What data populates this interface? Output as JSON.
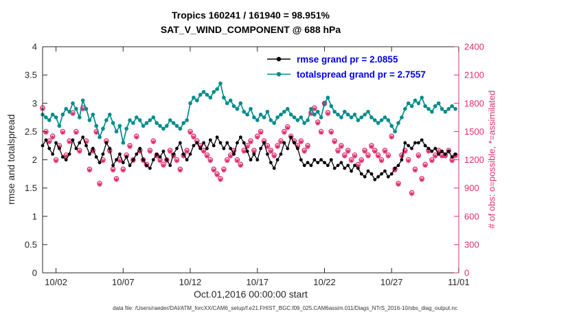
{
  "title_line1": "Tropics 160241 / 161940 = 98.951%",
  "title_line2": "SAT_V_WIND_COMPONENT @ 688 hPa",
  "footer": "data file: /Users/raeder/DAI/ATM_forcXX/CAM6_setup/f.e21.FHIST_BGC.f09_025.CAM6assim.011/Diags_NTrS_2016-10/obs_diag_output.nc",
  "colors": {
    "rmse": "#000000",
    "totalspread": "#008b8b",
    "obs": "#DE2D6C",
    "legend_text": "#0000EE",
    "axis": "#262626"
  },
  "chart_data": {
    "type": "line",
    "title": "Tropics 160241 / 161940 = 98.951% | SAT_V_WIND_COMPONENT @ 688 hPa",
    "xlabel": "Oct.01,2016 00:00:00 start",
    "ylabel_left": "rmse and totalspread",
    "ylabel_right": "# of obs: o=possible, *=assimilated",
    "ylim_left": [
      0,
      4
    ],
    "ylim_right": [
      0,
      2400
    ],
    "xlim_days": [
      1,
      32
    ],
    "xtick_days": [
      2,
      7,
      12,
      17,
      22,
      27,
      32
    ],
    "xtick_labels": [
      "10/02",
      "10/07",
      "10/12",
      "10/17",
      "10/22",
      "10/27",
      "11/01"
    ],
    "ytick_left": [
      0,
      0.5,
      1,
      1.5,
      2,
      2.5,
      3,
      3.5,
      4
    ],
    "ytick_right": [
      0,
      300,
      600,
      900,
      1200,
      1500,
      1800,
      2100,
      2400
    ],
    "x_start_day": 1,
    "x_step_days": 0.25,
    "grid": false,
    "legend_position": "upper-center-right",
    "series": [
      {
        "name": "# of obs possible",
        "axis": "right",
        "marker": "open-circle",
        "line": false,
        "color": "#DE2D6C",
        "values": [
          1750,
          1500,
          1400,
          1450,
          1200,
          1350,
          1500,
          1250,
          1400,
          1700,
          1500,
          1300,
          1750,
          1400,
          1100,
          1300,
          1500,
          950,
          1200,
          1400,
          1300,
          1100,
          1000,
          1200,
          1100,
          1250,
          1350,
          1200,
          1450,
          1300,
          1200,
          1150,
          1300,
          1400,
          1250,
          1200,
          1150,
          1200,
          1300,
          1250,
          1200,
          1100,
          1250,
          1300,
          1500,
          1450,
          1400,
          1350,
          1300,
          1250,
          1200,
          1100,
          1050,
          1000,
          1100,
          1200,
          1250,
          1300,
          1200,
          1150,
          1300,
          1350,
          1400,
          1300,
          1450,
          1500,
          1400,
          1350,
          1300,
          1250,
          1350,
          1400,
          1500,
          1550,
          1450,
          1400,
          1350,
          1400,
          1300,
          1350,
          1700,
          1750,
          1600,
          1500,
          1800,
          1700,
          1500,
          1400,
          1300,
          1350,
          1250,
          1300,
          1200,
          1250,
          1150,
          1200,
          1300,
          1250,
          1350,
          1300,
          1250,
          1200,
          1300,
          1250,
          1450,
          1100,
          950,
          1250,
          1300,
          1200,
          850,
          1100,
          1250,
          1000,
          1150,
          1300,
          1200,
          1250,
          1300,
          1250,
          1250,
          1300,
          1200,
          1250
        ]
      },
      {
        "name": "# of obs assimilated",
        "axis": "right",
        "marker": "asterisk",
        "line": false,
        "color": "#DE2D6C",
        "values": [
          1738,
          1488,
          1388,
          1438,
          1188,
          1338,
          1488,
          1238,
          1388,
          1688,
          1488,
          1288,
          1738,
          1388,
          1088,
          1288,
          1488,
          938,
          1188,
          1388,
          1288,
          1088,
          988,
          1188,
          1088,
          1238,
          1338,
          1188,
          1438,
          1288,
          1188,
          1138,
          1288,
          1388,
          1238,
          1188,
          1138,
          1188,
          1288,
          1238,
          1188,
          1088,
          1238,
          1288,
          1488,
          1438,
          1388,
          1338,
          1288,
          1238,
          1188,
          1088,
          1038,
          988,
          1088,
          1188,
          1238,
          1288,
          1188,
          1138,
          1288,
          1338,
          1388,
          1288,
          1438,
          1488,
          1388,
          1338,
          1288,
          1238,
          1338,
          1388,
          1488,
          1538,
          1438,
          1388,
          1338,
          1388,
          1288,
          1338,
          1688,
          1738,
          1588,
          1488,
          1788,
          1688,
          1488,
          1388,
          1288,
          1338,
          1238,
          1288,
          1188,
          1238,
          1138,
          1188,
          1288,
          1238,
          1338,
          1288,
          1238,
          1188,
          1288,
          1238,
          1438,
          1088,
          938,
          1238,
          1288,
          1188,
          838,
          1088,
          1238,
          988,
          1138,
          1288,
          1188,
          1238,
          1288,
          1238,
          1238,
          1288,
          1188,
          1238
        ]
      },
      {
        "name": "totalspread grand pr = 2.7557",
        "axis": "left",
        "marker": "filled-circle",
        "line": true,
        "color": "#008b8b",
        "values": [
          2.8,
          2.75,
          2.7,
          2.8,
          2.75,
          2.6,
          2.8,
          2.9,
          2.85,
          3.0,
          2.9,
          2.75,
          3.05,
          2.9,
          2.7,
          2.8,
          2.6,
          2.4,
          2.55,
          2.7,
          2.8,
          2.65,
          2.5,
          2.6,
          2.3,
          2.55,
          2.7,
          2.65,
          2.75,
          2.7,
          2.6,
          2.65,
          2.7,
          2.75,
          2.65,
          2.6,
          2.55,
          2.6,
          2.7,
          2.65,
          2.6,
          2.55,
          2.65,
          2.7,
          3.0,
          3.1,
          3.05,
          3.15,
          3.2,
          3.15,
          3.1,
          3.2,
          3.25,
          3.35,
          3.1,
          3.0,
          3.05,
          2.95,
          2.9,
          3.0,
          2.85,
          2.8,
          2.9,
          2.75,
          2.7,
          2.8,
          2.75,
          2.85,
          2.7,
          2.65,
          2.75,
          2.8,
          2.85,
          2.9,
          2.8,
          2.75,
          2.7,
          2.75,
          2.65,
          2.7,
          2.9,
          2.8,
          2.85,
          2.75,
          3.0,
          3.1,
          2.95,
          2.85,
          2.8,
          2.75,
          2.85,
          2.8,
          2.75,
          2.8,
          2.7,
          2.75,
          2.8,
          2.85,
          2.75,
          2.7,
          2.65,
          2.7,
          2.75,
          2.7,
          2.6,
          2.5,
          2.65,
          2.75,
          2.9,
          3.0,
          2.95,
          3.05,
          3.0,
          3.1,
          2.95,
          2.9,
          2.85,
          2.95,
          3.0,
          2.9,
          2.85,
          2.9,
          2.95,
          2.9
        ]
      },
      {
        "name": "rmse grand pr = 2.0855",
        "axis": "left",
        "marker": "filled-circle",
        "line": true,
        "color": "#000000",
        "values": [
          2.25,
          2.35,
          2.2,
          2.1,
          2.3,
          2.2,
          2.05,
          2.0,
          2.1,
          2.35,
          2.2,
          2.3,
          2.4,
          2.25,
          2.1,
          2.2,
          2.05,
          1.95,
          2.1,
          2.3,
          2.2,
          1.9,
          2.0,
          2.1,
          1.95,
          2.05,
          1.9,
          2.0,
          2.1,
          2.2,
          2.0,
          1.9,
          1.85,
          2.0,
          2.1,
          2.05,
          2.15,
          2.0,
          1.9,
          2.1,
          2.2,
          2.3,
          2.1,
          2.0,
          2.1,
          2.25,
          2.3,
          2.2,
          2.3,
          2.2,
          2.35,
          2.25,
          2.4,
          2.3,
          2.2,
          2.3,
          2.2,
          2.1,
          2.3,
          2.4,
          2.3,
          2.15,
          2.0,
          2.1,
          2.0,
          2.2,
          2.3,
          2.1,
          1.95,
          1.85,
          2.0,
          2.1,
          2.3,
          2.2,
          2.4,
          2.3,
          2.2,
          2.0,
          1.9,
          1.95,
          1.9,
          2.0,
          1.95,
          2.0,
          1.95,
          1.9,
          2.0,
          1.85,
          1.9,
          1.95,
          1.85,
          1.9,
          1.8,
          1.9,
          1.85,
          1.75,
          1.7,
          1.8,
          1.75,
          1.65,
          1.7,
          1.75,
          1.8,
          1.7,
          1.75,
          1.85,
          1.9,
          2.0,
          2.3,
          2.25,
          2.2,
          2.3,
          2.3,
          2.35,
          2.25,
          2.2,
          2.15,
          2.2,
          2.1,
          2.15,
          2.1,
          2.15,
          2.05,
          2.1
        ]
      }
    ],
    "legend_entries": [
      "rmse grand pr = 2.0855",
      "totalspread grand pr = 2.7557"
    ]
  }
}
